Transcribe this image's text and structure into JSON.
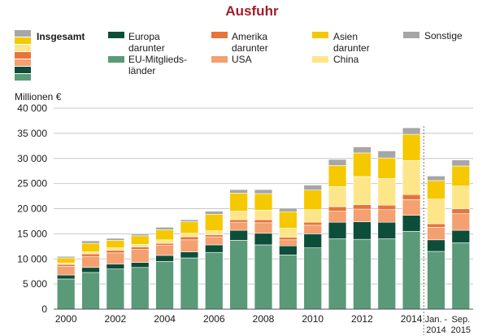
{
  "chart_data": {
    "type": "bar",
    "stacked": true,
    "title": "Ausfuhr",
    "ylabel": "Millionen €",
    "ylim": [
      0,
      40000
    ],
    "yticks": [
      "0",
      "5 000",
      "10 000",
      "15 000",
      "20 000",
      "25 000",
      "30 000",
      "35 000",
      "40 000"
    ],
    "categories": [
      "2000",
      "2001",
      "2002",
      "2003",
      "2004",
      "2005",
      "2006",
      "2007",
      "2008",
      "2009",
      "2010",
      "2011",
      "2012",
      "2013",
      "2014",
      "Jan. - 2014",
      "Sep. 2015"
    ],
    "x_tick_labels": [
      "2000",
      "",
      "2002",
      "",
      "2004",
      "",
      "2006",
      "",
      "2008",
      "",
      "2010",
      "",
      "2012",
      "",
      "2014",
      "Jan. -\n2014",
      "Sep.\n2015"
    ],
    "series": [
      {
        "name": "EU-Mitgliedsländer",
        "color": "#5a9a78",
        "values": [
          6000,
          7300,
          8000,
          8300,
          9500,
          10200,
          11300,
          13700,
          12800,
          10800,
          12200,
          14000,
          13900,
          14000,
          15500,
          11500,
          13200
        ]
      },
      {
        "name": "Europa",
        "color": "#0d4e3a",
        "values": [
          800,
          1000,
          1000,
          1000,
          1200,
          1200,
          1500,
          2000,
          2300,
          1800,
          2800,
          3300,
          3500,
          3300,
          3200,
          2300,
          2500
        ]
      },
      {
        "name": "USA",
        "color": "#f4a070",
        "values": [
          1700,
          2200,
          2200,
          2600,
          2000,
          2400,
          1600,
          1600,
          2100,
          1200,
          1700,
          2200,
          2500,
          2500,
          3100,
          2500,
          3300
        ]
      },
      {
        "name": "Amerika",
        "color": "#e8743a",
        "values": [
          400,
          500,
          500,
          500,
          400,
          600,
          400,
          500,
          600,
          500,
          600,
          900,
          900,
          900,
          1000,
          700,
          1000
        ]
      },
      {
        "name": "China",
        "color": "#fde68a",
        "values": [
          300,
          400,
          500,
          500,
          700,
          700,
          800,
          1700,
          1900,
          1800,
          2500,
          4000,
          5600,
          5300,
          6800,
          4900,
          4500
        ]
      },
      {
        "name": "Asien",
        "color": "#f5c800",
        "values": [
          1000,
          1700,
          1500,
          1700,
          2000,
          2300,
          3300,
          3600,
          3300,
          3300,
          3900,
          4200,
          4700,
          4100,
          5200,
          3700,
          4000
        ]
      },
      {
        "name": "Sonstige",
        "color": "#a6a6a6",
        "values": [
          300,
          500,
          400,
          400,
          500,
          400,
          600,
          700,
          800,
          700,
          1000,
          1200,
          1200,
          1400,
          1300,
          900,
          1200
        ]
      }
    ],
    "grid": true,
    "legend": {
      "total_label": "Insgesamt",
      "groups": [
        {
          "lines": [
            "Europa",
            "darunter",
            "EU-Mitglieds-",
            "länder"
          ],
          "swatch_colors": [
            "#0d4e3a",
            "#5a9a78"
          ]
        },
        {
          "lines": [
            "Amerika",
            "darunter",
            "USA"
          ],
          "swatch_colors": [
            "#e8743a",
            "#f4a070"
          ]
        },
        {
          "lines": [
            "Asien",
            "darunter",
            "China"
          ],
          "swatch_colors": [
            "#f5c800",
            "#fde68a"
          ]
        },
        {
          "lines": [
            "Sonstige"
          ],
          "swatch_colors": [
            "#a6a6a6"
          ]
        }
      ],
      "total_swatch_colors": [
        "#a6a6a6",
        "#f5c800",
        "#fde68a",
        "#e8743a",
        "#f4a070",
        "#0d4e3a",
        "#5a9a78"
      ]
    }
  }
}
